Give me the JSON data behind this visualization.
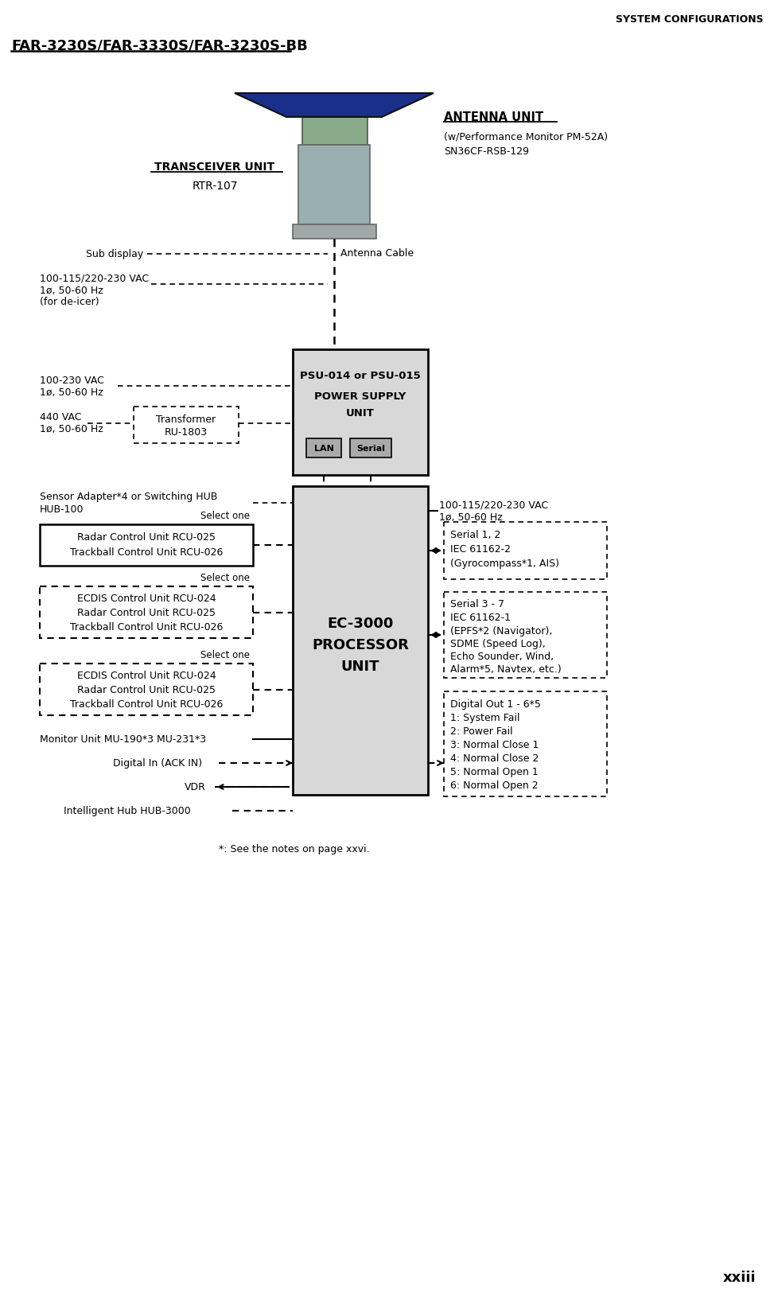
{
  "title_header": "SYSTEM CONFIGURATIONS",
  "page_title": "FAR-3230S/FAR-3330S/FAR-3230S-BB",
  "page_number": "xxiii",
  "bg": "#ffffff",
  "antenna_unit_label": "ANTENNA UNIT",
  "antenna_unit_sub1": "(w/Performance Monitor PM-52A)",
  "antenna_unit_sub2": "SN36CF-RSB-129",
  "transceiver_unit_label": "TRANSCEIVER UNIT",
  "transceiver_unit_sub": "RTR-107",
  "sub_display_label": "Sub display",
  "antenna_cable_label": "Antenna Cable",
  "power_deicer1": "100-115/220-230 VAC",
  "power_deicer2": "1ø, 50-60 Hz",
  "power_deicer3": "(for de-icer)",
  "psu_line1": "PSU-014 or PSU-015",
  "psu_line2": "POWER SUPPLY",
  "psu_line3": "UNIT",
  "psu_lan": "LAN",
  "psu_serial": "Serial",
  "power100_1": "100-230 VAC",
  "power100_2": "1ø, 50-60 Hz",
  "power440_1": "440 VAC",
  "power440_2": "1ø, 50-60 Hz",
  "transformer_1": "Transformer",
  "transformer_2": "RU-1803",
  "sensor_1": "Sensor Adapter*4 or Switching HUB",
  "sensor_2": "HUB-100",
  "right_power_1": "100-115/220-230 VAC",
  "right_power_2": "1ø, 50-60 Hz",
  "ec_line1": "EC-3000",
  "ec_line2": "PROCESSOR",
  "ec_line3": "UNIT",
  "s12_1": "Serial 1, 2",
  "s12_2": "IEC 61162-2",
  "s12_3": "(Gyrocompass*1, AIS)",
  "s37_1": "Serial 3 - 7",
  "s37_2": "IEC 61162-1",
  "s37_3": "(EPFS*2 (Navigator),",
  "s37_4": "SDME (Speed Log),",
  "s37_5": "Echo Sounder, Wind,",
  "s37_6": "Alarm*5, Navtex, etc.)",
  "do_1": "Digital Out 1 - 6*5",
  "do_2": "1: System Fail",
  "do_3": "2: Power Fail",
  "do_4": "3: Normal Close 1",
  "do_5": "4: Normal Close 2",
  "do_6": "5: Normal Open 1",
  "do_7": "6: Normal Open 2",
  "sel1_label": "Select one",
  "sel1_1": "Radar Control Unit RCU-025",
  "sel1_2": "Trackball Control Unit RCU-026",
  "sel2_label": "Select one",
  "sel2_1": "ECDIS Control Unit RCU-024",
  "sel2_2": "Radar Control Unit RCU-025",
  "sel2_3": "Trackball Control Unit RCU-026",
  "sel3_label": "Select one",
  "sel3_1": "ECDIS Control Unit RCU-024",
  "sel3_2": "Radar Control Unit RCU-025",
  "sel3_3": "Trackball Control Unit RCU-026",
  "monitor_label": "Monitor Unit MU-190*3 MU-231*3",
  "digin_label": "Digital In (ACK IN)",
  "vdr_label": "VDR",
  "hub_label": "Intelligent Hub HUB-3000",
  "footnote": "*: See the notes on page xxvi."
}
